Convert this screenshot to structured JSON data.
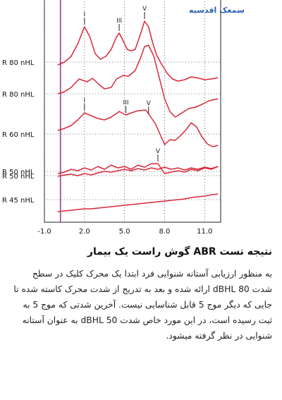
{
  "logo_text": "سمعک اقدسیه",
  "chart_data": {
    "type": "line",
    "title": "",
    "xlabel": "",
    "ylabel": "",
    "xlim": [
      -1.0,
      12.2
    ],
    "x_ticks": [
      "-1.0",
      "2.0",
      "5.0",
      "8.0",
      "11.0"
    ],
    "x_tick_values": [
      -1.0,
      2.0,
      5.0,
      8.0,
      11.0
    ],
    "stimulus_marker_x": 0.2,
    "grid": "dotted horizontal baselines",
    "line_color": "#d9283a",
    "marker_color": "#a23a9a",
    "series": [
      {
        "label": "R 80 nHL",
        "points": [
          [
            0,
            92
          ],
          [
            0.5,
            88
          ],
          [
            1,
            80
          ],
          [
            1.5,
            62
          ],
          [
            2,
            38
          ],
          [
            2.4,
            52
          ],
          [
            2.8,
            76
          ],
          [
            3.2,
            84
          ],
          [
            3.6,
            80
          ],
          [
            4,
            70
          ],
          [
            4.4,
            52
          ],
          [
            4.6,
            47
          ],
          [
            4.9,
            58
          ],
          [
            5.2,
            70
          ],
          [
            5.5,
            72
          ],
          [
            5.8,
            70
          ],
          [
            6.2,
            48
          ],
          [
            6.5,
            30
          ],
          [
            6.8,
            38
          ],
          [
            7.1,
            60
          ],
          [
            7.4,
            78
          ],
          [
            7.8,
            92
          ],
          [
            8.2,
            104
          ],
          [
            8.6,
            112
          ],
          [
            9,
            115
          ],
          [
            9.5,
            113
          ],
          [
            10,
            109
          ],
          [
            10.6,
            111
          ],
          [
            11,
            113
          ],
          [
            11.5,
            112
          ],
          [
            12,
            110
          ]
        ],
        "peaks": [
          {
            "label": "I",
            "x": 2.0
          },
          {
            "label": "III",
            "x": 4.6
          },
          {
            "label": "V",
            "x": 6.5
          }
        ]
      },
      {
        "label": "R 80 nHL",
        "points": [
          [
            0,
            133
          ],
          [
            0.5,
            130
          ],
          [
            1,
            124
          ],
          [
            1.6,
            112
          ],
          [
            2.2,
            116
          ],
          [
            2.6,
            111
          ],
          [
            3.1,
            120
          ],
          [
            3.5,
            126
          ],
          [
            4,
            124
          ],
          [
            4.4,
            112
          ],
          [
            4.9,
            107
          ],
          [
            5.3,
            108
          ],
          [
            5.8,
            100
          ],
          [
            6.2,
            82
          ],
          [
            6.5,
            66
          ],
          [
            6.8,
            64
          ],
          [
            7.2,
            80
          ],
          [
            7.6,
            110
          ],
          [
            8,
            140
          ],
          [
            8.4,
            158
          ],
          [
            8.8,
            166
          ],
          [
            9.3,
            160
          ],
          [
            9.8,
            154
          ],
          [
            10.3,
            152
          ],
          [
            10.8,
            148
          ],
          [
            11.3,
            143
          ],
          [
            12,
            140
          ]
        ]
      },
      {
        "label": "R 60 nHL",
        "points": [
          [
            0,
            185
          ],
          [
            0.5,
            182
          ],
          [
            1,
            178
          ],
          [
            1.5,
            170
          ],
          [
            2,
            160
          ],
          [
            2.5,
            164
          ],
          [
            3,
            168
          ],
          [
            3.5,
            170
          ],
          [
            4,
            166
          ],
          [
            4.6,
            158
          ],
          [
            5.1,
            163
          ],
          [
            5.5,
            160
          ],
          [
            6,
            157
          ],
          [
            6.6,
            156
          ],
          [
            6.9,
            164
          ],
          [
            7.3,
            175
          ],
          [
            7.7,
            192
          ],
          [
            8,
            205
          ],
          [
            8.4,
            198
          ],
          [
            8.8,
            199
          ],
          [
            9.2,
            192
          ],
          [
            9.6,
            184
          ],
          [
            10,
            174
          ],
          [
            10.4,
            180
          ],
          [
            10.8,
            194
          ],
          [
            11.2,
            204
          ],
          [
            11.6,
            208
          ],
          [
            12,
            206
          ]
        ],
        "peaks": [
          {
            "label": "I",
            "x": 2.0
          },
          {
            "label": "III",
            "x": 5.1
          },
          {
            "label": "V",
            "x": 6.8
          }
        ]
      },
      {
        "label": "R 50 nHL",
        "points": [
          [
            0,
            246
          ],
          [
            0.5,
            244
          ],
          [
            1,
            240
          ],
          [
            1.5,
            242
          ],
          [
            2,
            238
          ],
          [
            2.5,
            241
          ],
          [
            3,
            236
          ],
          [
            3.5,
            240
          ],
          [
            4,
            234
          ],
          [
            4.5,
            238
          ],
          [
            5,
            236
          ],
          [
            5.5,
            240
          ],
          [
            6,
            234
          ],
          [
            6.5,
            237
          ],
          [
            7,
            232
          ],
          [
            7.5,
            232
          ],
          [
            8,
            246
          ],
          [
            8.5,
            244
          ],
          [
            9,
            242
          ],
          [
            9.5,
            244
          ],
          [
            10,
            240
          ],
          [
            10.5,
            242
          ],
          [
            11,
            238
          ],
          [
            11.5,
            240
          ],
          [
            12,
            236
          ]
        ],
        "peaks": [
          {
            "label": "V",
            "x": 7.5
          }
        ]
      },
      {
        "label": "R 50 nHL",
        "points": [
          [
            0,
            250
          ],
          [
            0.5,
            248
          ],
          [
            1,
            247
          ],
          [
            1.5,
            249
          ],
          [
            2,
            246
          ],
          [
            2.5,
            248
          ],
          [
            3,
            245
          ],
          [
            3.5,
            243
          ],
          [
            4,
            244
          ],
          [
            4.5,
            242
          ],
          [
            5,
            240
          ],
          [
            5.5,
            242
          ],
          [
            6,
            239
          ],
          [
            6.5,
            241
          ],
          [
            7,
            238
          ],
          [
            7.5,
            240
          ],
          [
            8,
            237
          ],
          [
            8.5,
            240
          ],
          [
            9,
            238
          ],
          [
            9.5,
            241
          ],
          [
            10,
            238
          ],
          [
            10.5,
            240
          ],
          [
            11,
            237
          ],
          [
            11.5,
            239
          ],
          [
            12,
            236
          ]
        ]
      },
      {
        "label": "R 45 nHL",
        "points": [
          [
            0,
            300
          ],
          [
            0.5,
            299
          ],
          [
            1,
            298
          ],
          [
            1.5,
            297
          ],
          [
            2,
            296
          ],
          [
            2.5,
            296
          ],
          [
            3,
            295
          ],
          [
            3.5,
            294
          ],
          [
            4,
            293
          ],
          [
            4.5,
            292
          ],
          [
            5,
            291
          ],
          [
            5.5,
            290
          ],
          [
            6,
            289
          ],
          [
            6.5,
            288
          ],
          [
            7,
            287
          ],
          [
            7.5,
            286
          ],
          [
            8,
            285
          ],
          [
            8.5,
            284
          ],
          [
            9,
            283
          ],
          [
            9.5,
            282
          ],
          [
            10,
            280
          ],
          [
            10.5,
            279
          ],
          [
            11,
            278
          ],
          [
            11.5,
            276
          ],
          [
            12,
            275
          ]
        ]
      }
    ],
    "y_label_rows": [
      {
        "text": "R 80 nHL",
        "baseline": 88
      },
      {
        "text": "R 80 nHL",
        "baseline": 133
      },
      {
        "text": "R 60 nHL",
        "baseline": 190
      },
      {
        "text": "R 50 nHL",
        "baseline": 243
      },
      {
        "text": "R 50 nHL",
        "baseline": 249
      },
      {
        "text": "R 45 nHL",
        "baseline": 283
      }
    ]
  },
  "caption": {
    "heading": "نتیجه تست ABR گوش راست یک بیمار",
    "paragraph": "به منظور ارزیابی آستانه شنوایی فرد ابتدا یک محرک کلیک در سطح شدت 80 dBHL ارائه شده و بعد به تدریج از شدت محرک کاسته شده تا جایی که دیگر موج 5 قابل شناسایی نیست. آخرین شدتی که موج 5 به ثبت رسیده است، در این مورد خاص شدت    50 dBHL به عنوان آستانه شنوایی در نظر گرفته میشود."
  }
}
